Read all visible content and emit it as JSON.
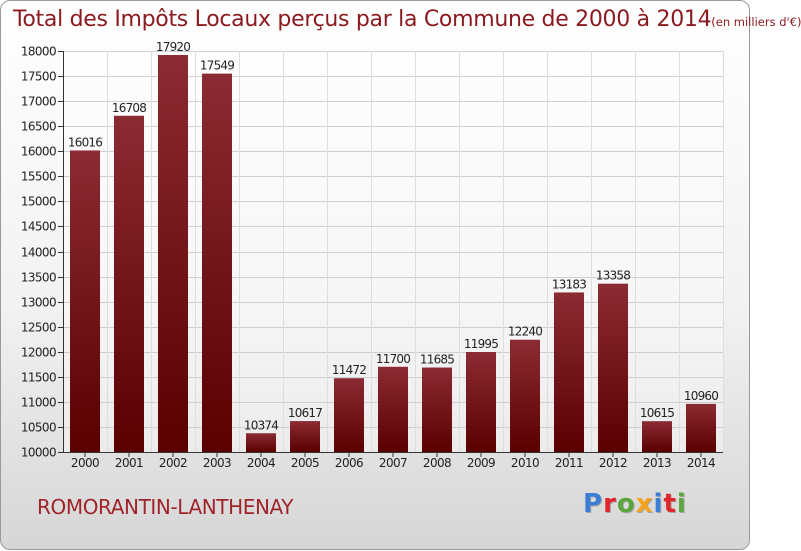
{
  "header": {
    "title": "Total des Impôts Locaux perçus par la Commune de 2000 à 2014",
    "unit": "(en milliers d'€)"
  },
  "footer": {
    "commune": "ROMORANTIN-LANTHENAY",
    "brand": "Proxiti"
  },
  "colors": {
    "bar_top": "#8b2b33",
    "bar_bottom": "#5a0000",
    "title": "#8b1a1f",
    "brand_letters": [
      "#3a7fd5",
      "#e0262b",
      "#5aa63c",
      "#f7a21b",
      "#3a7fd5",
      "#e0262b",
      "#5aa63c"
    ]
  },
  "chart_data": {
    "type": "bar",
    "title": "Total des Impôts Locaux perçus par la Commune de 2000 à 2014 (en milliers d'€)",
    "categories": [
      "2000",
      "2001",
      "2002",
      "2003",
      "2004",
      "2005",
      "2006",
      "2007",
      "2008",
      "2009",
      "2010",
      "2011",
      "2012",
      "2013",
      "2014"
    ],
    "values": [
      16016,
      16708,
      17920,
      17549,
      10374,
      10617,
      11472,
      11700,
      11685,
      11995,
      12240,
      13183,
      13358,
      10615,
      10960
    ],
    "ylim": [
      10000,
      18000
    ],
    "yticks": [
      10000,
      10500,
      11000,
      11500,
      12000,
      12500,
      13000,
      13500,
      14000,
      14500,
      15000,
      15500,
      16000,
      16500,
      17000,
      17500,
      18000
    ],
    "xlabel": "",
    "ylabel": "",
    "grid": true
  }
}
